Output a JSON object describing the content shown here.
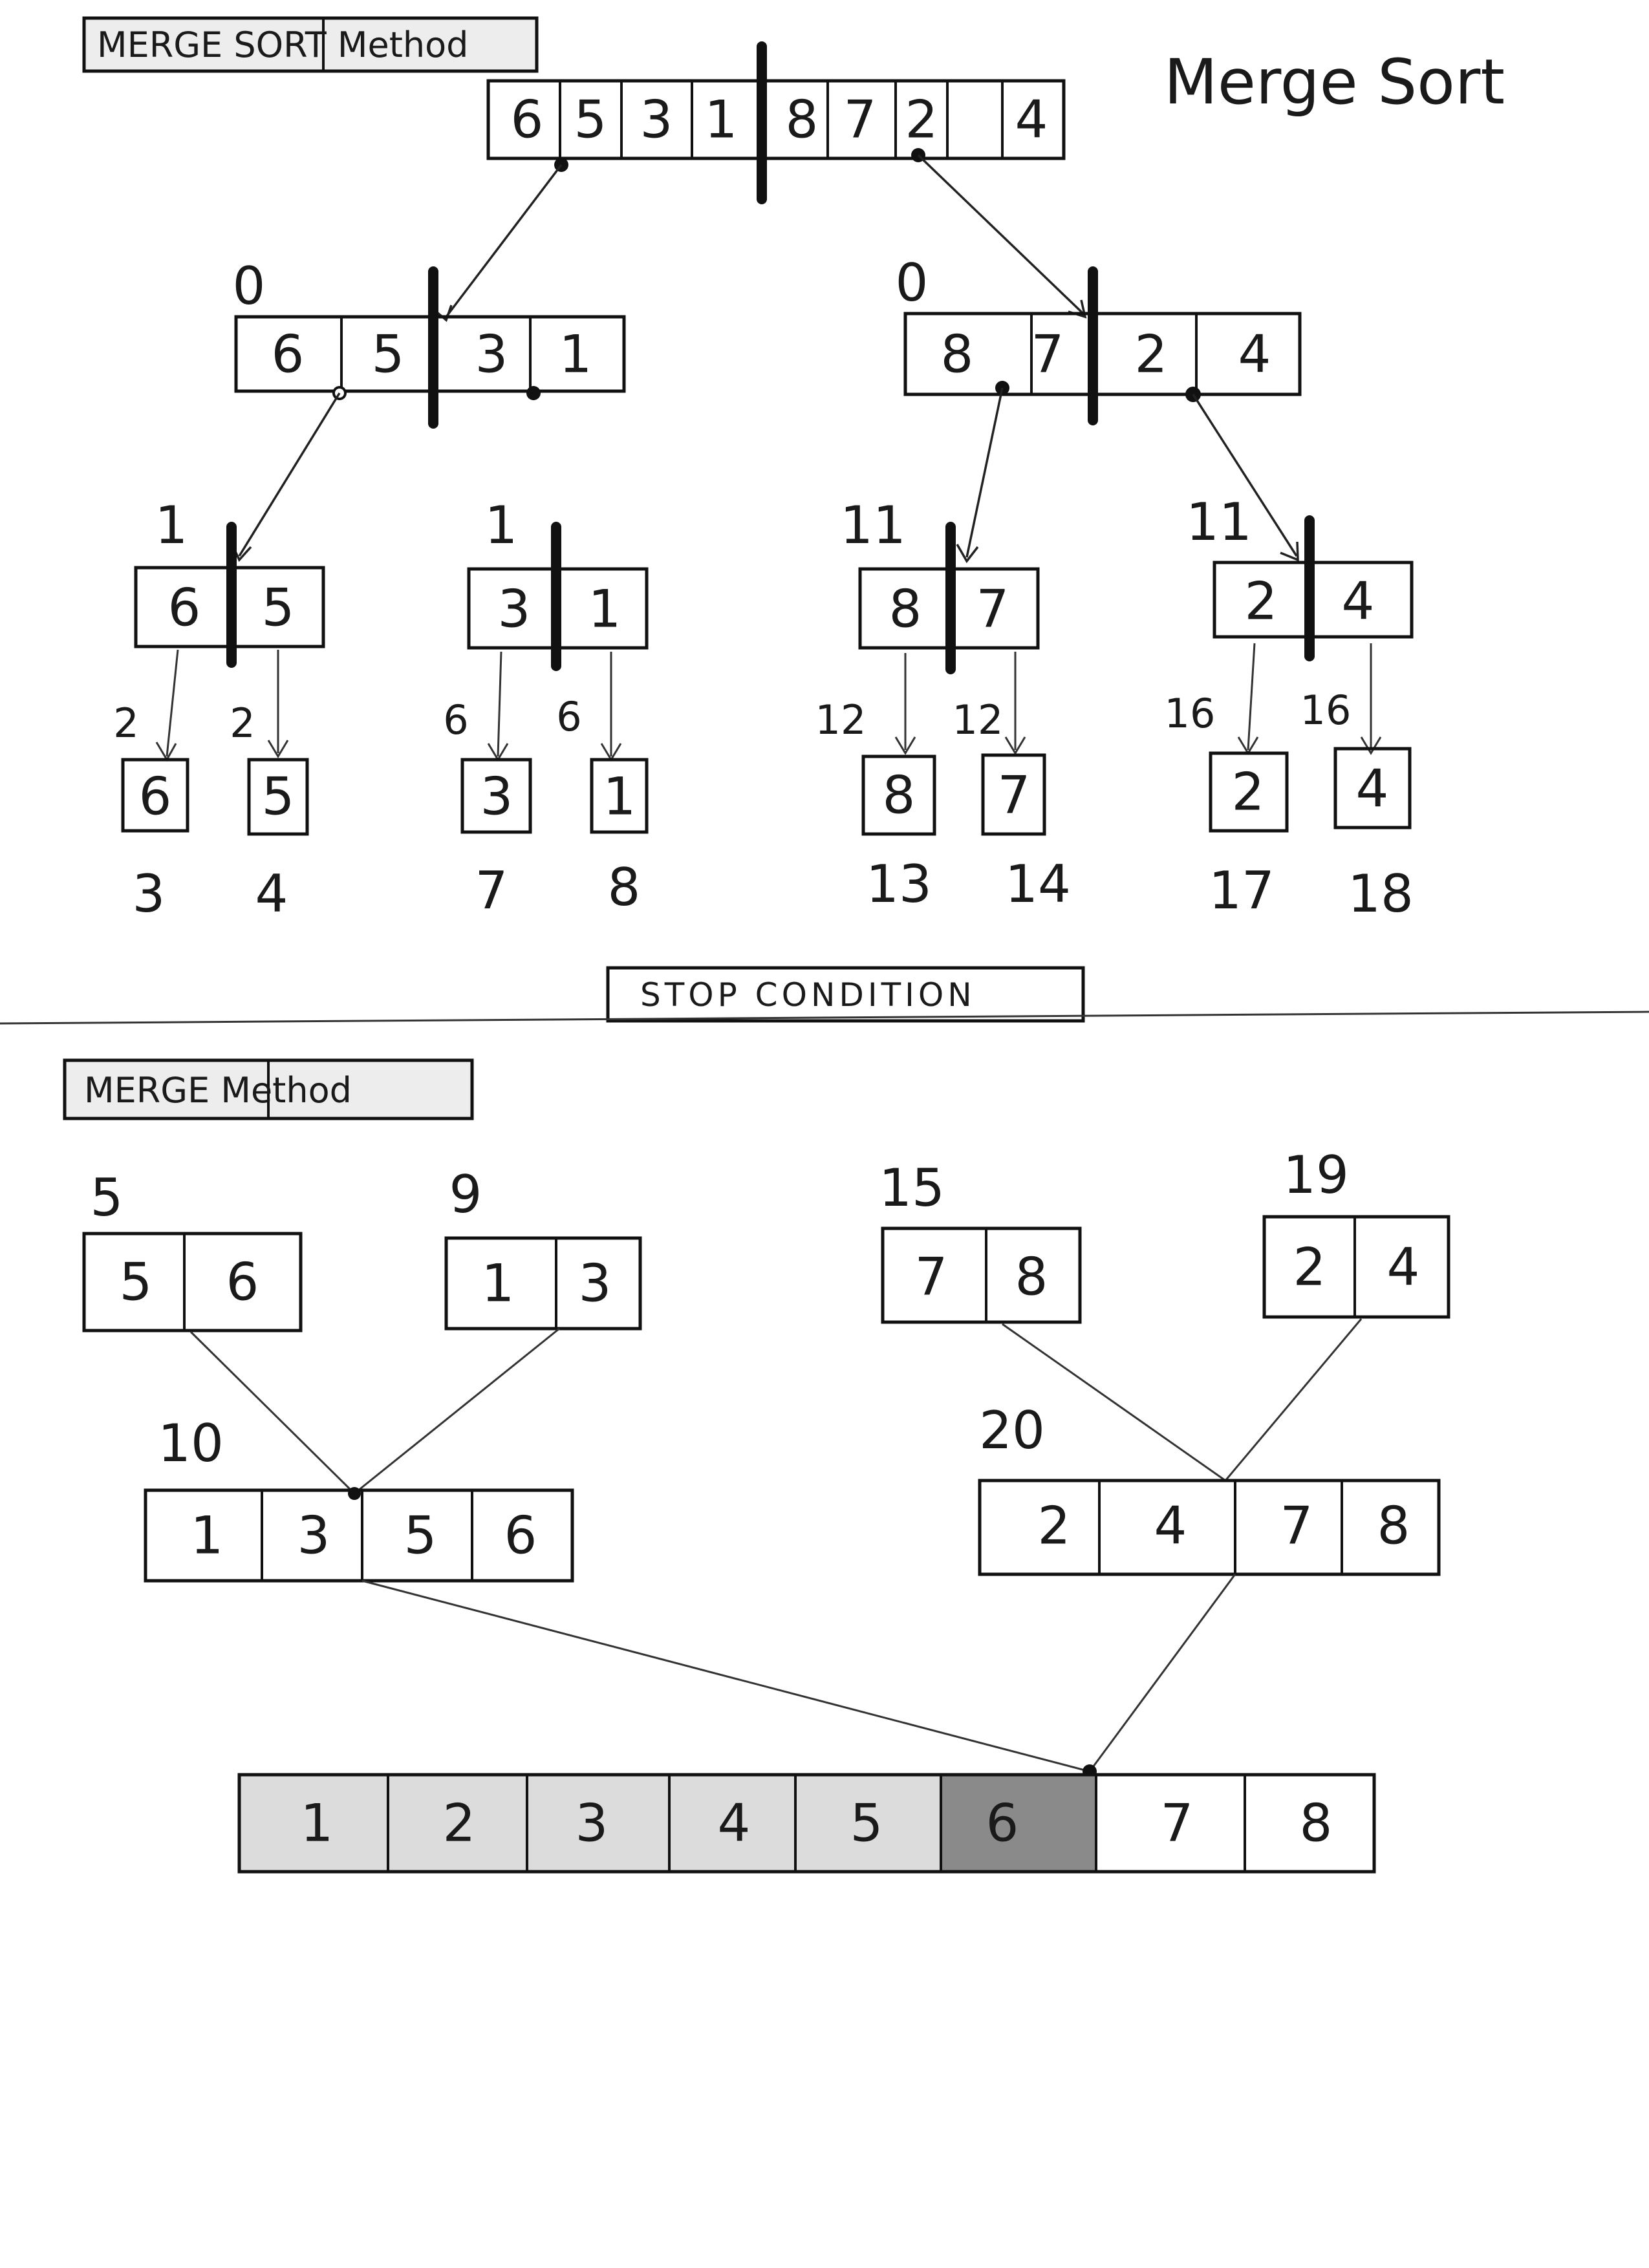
{
  "top_label": "MERGE SORT Method",
  "title": "Merge Sort",
  "stop_condition": "STOP CONDITION",
  "bottom_label": "MERGE Method",
  "split": {
    "root": [
      "6",
      "5",
      "3",
      "1",
      "8",
      "7",
      "2",
      "4"
    ],
    "level1": [
      {
        "step": "0",
        "values": [
          "6",
          "5",
          "3",
          "1"
        ]
      },
      {
        "step": "0",
        "values": [
          "8",
          "7",
          "2",
          "4"
        ]
      }
    ],
    "level2": [
      {
        "step": "1",
        "values": [
          "6",
          "5"
        ]
      },
      {
        "step": "1",
        "values": [
          "3",
          "1"
        ]
      },
      {
        "step": "11",
        "values": [
          "8",
          "7"
        ]
      },
      {
        "step": "11",
        "values": [
          "2",
          "4"
        ]
      }
    ],
    "arrow_steps": [
      "2",
      "2",
      "6",
      "6",
      "12",
      "12",
      "16",
      "16"
    ],
    "leaves": [
      {
        "value": "6",
        "step": "3"
      },
      {
        "value": "5",
        "step": "4"
      },
      {
        "value": "3",
        "step": "7"
      },
      {
        "value": "1",
        "step": "8"
      },
      {
        "value": "8",
        "step": "13"
      },
      {
        "value": "7",
        "step": "14"
      },
      {
        "value": "2",
        "step": "17"
      },
      {
        "value": "4",
        "step": "18"
      }
    ]
  },
  "merge": {
    "pairs": [
      {
        "step": "5",
        "values": [
          "5",
          "6"
        ]
      },
      {
        "step": "9",
        "values": [
          "1",
          "3"
        ]
      },
      {
        "step": "15",
        "values": [
          "7",
          "8"
        ]
      },
      {
        "step": "19",
        "values": [
          "2",
          "4"
        ]
      }
    ],
    "quads": [
      {
        "step": "10",
        "values": [
          "1",
          "3",
          "5",
          "6"
        ]
      },
      {
        "step": "20",
        "values": [
          "2",
          "4",
          "7",
          "8"
        ]
      }
    ],
    "final": [
      "1",
      "2",
      "3",
      "4",
      "5",
      "6",
      "7",
      "8"
    ]
  },
  "colors": {
    "ink": "#111111",
    "shade_light": "#dcdcdc",
    "shade_dark": "#8a8a8a"
  }
}
